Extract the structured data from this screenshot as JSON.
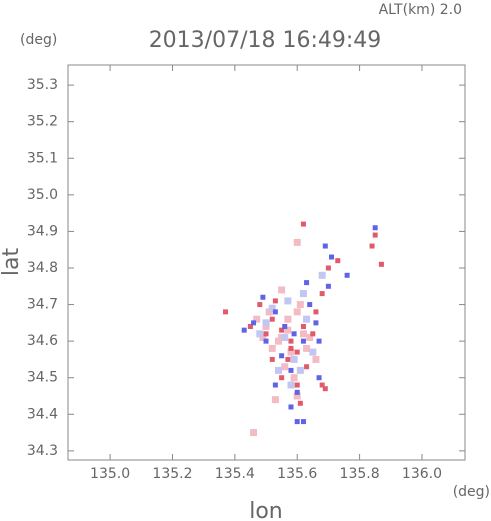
{
  "chart_data": {
    "type": "scatter",
    "title": "2013/07/18 16:49:49",
    "annotation": "ALT(km) 2.0",
    "y_unit": "(deg)",
    "x_unit": "(deg)",
    "xlabel": "lon",
    "ylabel": "lat",
    "xlim": [
      134.865,
      136.138
    ],
    "ylim": [
      34.275,
      35.355
    ],
    "xticks": [
      {
        "value": 135,
        "label": "135.0"
      },
      135.2,
      135.4,
      135.6,
      135.8,
      {
        "value": 136,
        "label": "136.0"
      }
    ],
    "yticks": [
      34.3,
      34.4,
      34.5,
      34.6,
      34.7,
      34.8,
      34.9,
      {
        "value": 35,
        "label": "35.0"
      },
      35.1,
      35.2,
      35.3
    ],
    "series": [
      {
        "color": "#f3bcc4",
        "x": [
          135.47,
          135.5,
          135.54,
          135.57,
          135.6,
          135.63,
          135.66,
          135.52,
          135.56,
          135.59,
          135.62,
          135.55,
          135.58,
          135.61,
          135.51,
          135.64,
          135.57,
          135.6,
          135.53,
          135.49,
          135.46,
          135.6,
          135.55
        ],
        "y": [
          34.66,
          34.64,
          34.6,
          34.66,
          34.68,
          34.58,
          34.55,
          34.58,
          34.53,
          34.5,
          34.62,
          34.61,
          34.57,
          34.7,
          34.68,
          34.61,
          34.63,
          34.45,
          34.44,
          34.61,
          34.35,
          34.87,
          34.74
        ]
      },
      {
        "color": "#c2c6f2",
        "x": [
          135.48,
          135.52,
          135.56,
          135.59,
          135.63,
          135.65,
          135.54,
          135.58,
          135.61,
          135.5,
          135.57,
          135.62,
          135.68
        ],
        "y": [
          34.62,
          34.69,
          34.61,
          34.55,
          34.66,
          34.57,
          34.52,
          34.48,
          34.52,
          34.65,
          34.71,
          34.73,
          34.78
        ]
      },
      {
        "color": "#e25a6a",
        "x": [
          135.37,
          135.48,
          135.52,
          135.55,
          135.58,
          135.6,
          135.62,
          135.65,
          135.5,
          135.57,
          135.63,
          135.68,
          135.69,
          135.55,
          135.6,
          135.62,
          135.7,
          135.73,
          135.84,
          135.85,
          135.87,
          135.68,
          135.45,
          135.53,
          135.58,
          135.66,
          135.52,
          135.61
        ],
        "y": [
          34.68,
          34.7,
          34.66,
          34.63,
          34.6,
          34.57,
          34.64,
          34.62,
          34.62,
          34.55,
          34.53,
          34.48,
          34.47,
          34.5,
          34.48,
          34.92,
          34.8,
          34.82,
          34.86,
          34.89,
          34.81,
          34.73,
          34.64,
          34.71,
          34.58,
          34.68,
          34.55,
          34.43
        ]
      },
      {
        "color": "#5f63e6",
        "x": [
          135.43,
          135.46,
          135.49,
          135.53,
          135.56,
          135.59,
          135.64,
          135.66,
          135.67,
          135.7,
          135.71,
          135.69,
          135.76,
          135.85,
          135.62,
          135.55,
          135.5,
          135.58,
          135.6,
          135.58,
          135.6,
          135.62,
          135.67,
          135.53,
          135.63
        ],
        "y": [
          34.63,
          34.65,
          34.72,
          34.68,
          34.64,
          34.62,
          34.7,
          34.65,
          34.6,
          34.75,
          34.83,
          34.86,
          34.78,
          34.91,
          34.6,
          34.56,
          34.6,
          34.52,
          34.46,
          34.42,
          34.38,
          34.38,
          34.5,
          34.48,
          34.76
        ]
      }
    ]
  }
}
